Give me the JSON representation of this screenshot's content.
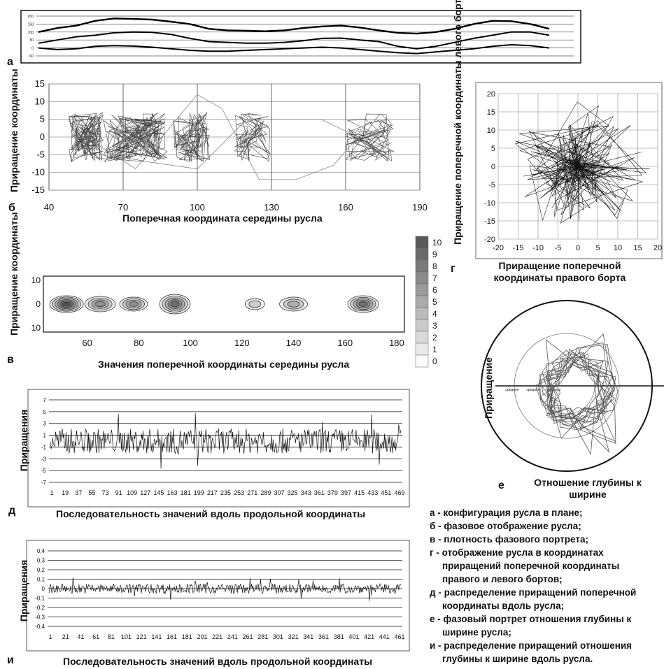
{
  "panels": {
    "a": {
      "letter": "а",
      "ticks": [
        "200",
        "150",
        "100",
        "50",
        "0",
        "-50"
      ]
    },
    "b": {
      "letter": "б",
      "ylabel": "Приращение координаты",
      "xlabel": "Поперечная координата середины русла"
    },
    "v": {
      "letter": "в",
      "ylabel": "Приращение координаты",
      "xlabel": "Значения поперечной координаты середины русла"
    },
    "g": {
      "letter": "г",
      "ylabel": "Приращение поперечной координаты левого борта",
      "xlabel": "Приращение поперечной координаты правого борта"
    },
    "d": {
      "letter": "д",
      "ylabel": "Приращения",
      "xlabel": "Последовательность значений вдоль продольной координаты"
    },
    "e": {
      "letter": "е",
      "ylabel": "Приращение",
      "xlabel": "Отношение глубины к ширине",
      "tick_label": "среднее"
    },
    "i": {
      "letter": "и",
      "ylabel": "Приращения",
      "xlabel": "Последовательность значений вдоль продольной координаты"
    }
  },
  "legend": [
    "а - конфигурация русла в плане;",
    "б - фазовое отображение русла;",
    "в - плотность фазового портрета;",
    "г - отображение русла в координатах",
    "приращений поперечной координаты",
    "правого и левого бортов;",
    "д - распределение приращений поперечной",
    "координаты вдоль русла;",
    "е - фазовый портрет отношения глубины к",
    "ширине русла;",
    "и - распределение приращений отношения",
    "глубины к ширине вдоль русла."
  ],
  "chart_data": [
    {
      "id": "a",
      "type": "line",
      "title": "",
      "xlabel": "",
      "ylabel": "",
      "yticks": [
        200,
        150,
        100,
        50,
        0,
        -50
      ],
      "ylim": [
        -50,
        200
      ],
      "series": [
        {
          "values": [
            100,
            125,
            140,
            170,
            185,
            182,
            178,
            165,
            150,
            120,
            110,
            108,
            105,
            110,
            125,
            135,
            140,
            128,
            110,
            95,
            90,
            100,
            120,
            150,
            170,
            168,
            150,
            120
          ]
        },
        {
          "values": [
            30,
            50,
            70,
            80,
            95,
            100,
            98,
            85,
            60,
            40,
            35,
            30,
            30,
            35,
            45,
            60,
            62,
            50,
            40,
            10,
            -5,
            10,
            35,
            60,
            80,
            100,
            100,
            80
          ]
        },
        {
          "values": [
            0,
            -10,
            -5,
            10,
            15,
            12,
            5,
            -5,
            -15,
            -20,
            -20,
            -15,
            -10,
            -5,
            0,
            5,
            0,
            -10,
            -20,
            -30,
            -35,
            -25,
            -15,
            -5,
            10,
            20,
            15,
            0
          ]
        }
      ]
    },
    {
      "id": "b",
      "type": "line",
      "title": "",
      "xlabel": "Поперечная координата середины русла",
      "ylabel": "Приращение координаты",
      "xticks": [
        40,
        70,
        100,
        130,
        160,
        190
      ],
      "yticks": [
        15,
        10,
        5,
        0,
        -5,
        -10,
        -15
      ],
      "xlim": [
        40,
        190
      ],
      "ylim": [
        -15,
        15
      ]
    },
    {
      "id": "v",
      "type": "heatmap",
      "title": "",
      "xlabel": "Значения поперечной координаты середины русла",
      "ylabel": "Приращение координаты",
      "xticks": [
        60,
        80,
        100,
        120,
        140,
        160,
        180
      ],
      "yticks": [
        10,
        0,
        10
      ],
      "colorbar": [
        10,
        9,
        8,
        7,
        6,
        5,
        4,
        3,
        2,
        1,
        0
      ]
    },
    {
      "id": "g",
      "type": "scatter",
      "title": "",
      "xlabel": "Приращение поперечной координаты правого борта",
      "ylabel": "Приращение поперечной координаты левого борта",
      "xticks": [
        -20,
        -15,
        -10,
        -5,
        0,
        5,
        10,
        15,
        20
      ],
      "yticks": [
        20,
        15,
        10,
        5,
        0,
        -5,
        -10,
        -15,
        -20
      ],
      "xlim": [
        -20,
        20
      ],
      "ylim": [
        -20,
        20
      ]
    },
    {
      "id": "d",
      "type": "line",
      "title": "",
      "xlabel": "Последовательность значений вдоль продольной координаты",
      "ylabel": "Приращения",
      "xticks": [
        1,
        19,
        37,
        55,
        73,
        91,
        109,
        127,
        145,
        163,
        181,
        199,
        217,
        235,
        253,
        271,
        289,
        307,
        325,
        343,
        361,
        379,
        397,
        415,
        433,
        451,
        469
      ],
      "yticks": [
        7,
        5,
        3,
        1,
        -1,
        -3,
        -5,
        -7
      ],
      "ylim": [
        -7,
        7
      ]
    },
    {
      "id": "e",
      "type": "line",
      "title": "",
      "xlabel": "Отношение глубины к ширине",
      "ylabel": "Приращение",
      "tick_label": "среднее"
    },
    {
      "id": "i",
      "type": "line",
      "title": "",
      "xlabel": "Последовательность значений вдоль продольной координаты",
      "ylabel": "Приращения",
      "xticks": [
        1,
        21,
        41,
        61,
        81,
        101,
        121,
        141,
        161,
        181,
        201,
        221,
        241,
        261,
        281,
        301,
        321,
        341,
        361,
        381,
        401,
        421,
        441,
        461
      ],
      "yticks": [
        "0,4",
        "0,3",
        "0,2",
        "0,1",
        "0",
        "-0,1",
        "-0,2",
        "-0,3",
        "-0,4"
      ],
      "ylim": [
        -0.4,
        0.4
      ]
    }
  ]
}
